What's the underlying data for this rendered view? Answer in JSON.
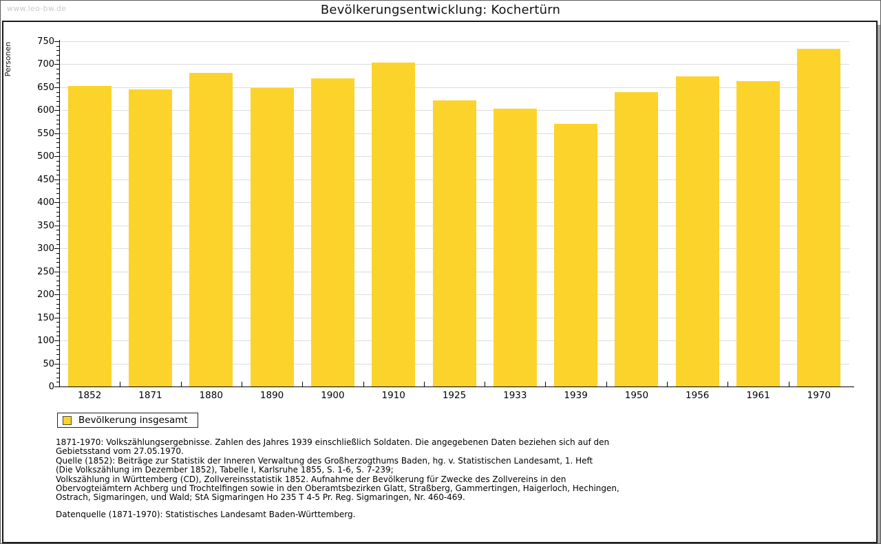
{
  "watermark": "www.leo-bw.de",
  "title": "Bevölkerungsentwicklung: Kochertürn",
  "chart_data": {
    "type": "bar",
    "title": "Bevölkerungsentwicklung: Kochertürn",
    "xlabel": "",
    "ylabel": "Personen",
    "categories": [
      "1852",
      "1871",
      "1880",
      "1890",
      "1900",
      "1910",
      "1925",
      "1933",
      "1939",
      "1950",
      "1956",
      "1961",
      "1970"
    ],
    "series": [
      {
        "name": "Bevölkerung insgesamt",
        "values": [
          653,
          645,
          681,
          648,
          670,
          703,
          622,
          604,
          571,
          639,
          674,
          663,
          734
        ]
      }
    ],
    "ylim": [
      0,
      750
    ],
    "y_major_step": 50,
    "y_minor_step": 10,
    "grid": true,
    "legend_position": "bottom-left",
    "bar_color": "#FCD32B",
    "gridline_color": "#dcdcdc"
  },
  "legend": {
    "label": "Bevölkerung insgesamt"
  },
  "footnote_lines": [
    "1871-1970: Volkszählungsergebnisse. Zahlen des Jahres 1939 einschließlich Soldaten. Die angegebenen Daten beziehen sich auf den",
    "Gebietsstand vom 27.05.1970.",
    "Quelle (1852): Beiträge zur Statistik der Inneren Verwaltung des Großherzogthums Baden, hg. v. Statistischen Landesamt, 1. Heft",
    "(Die Volkszählung im Dezember 1852), Tabelle I, Karlsruhe 1855, S. 1-6, S. 7-239;",
    "Volkszählung in Württemberg (CD), Zollvereinsstatistik 1852. Aufnahme der Bevölkerung für Zwecke des Zollvereins in den",
    "Obervogteiämtern Achberg und Trochtelfingen sowie in den Oberamtsbezirken Glatt, Straßberg, Gammertingen, Haigerloch, Hechingen,",
    "Ostrach, Sigmaringen, und Wald; StA Sigmaringen Ho 235 T 4-5 Pr. Reg. Sigmaringen, Nr. 460-469."
  ],
  "datasource": "Datenquelle (1871-1970): Statistisches Landesamt Baden-Württemberg."
}
